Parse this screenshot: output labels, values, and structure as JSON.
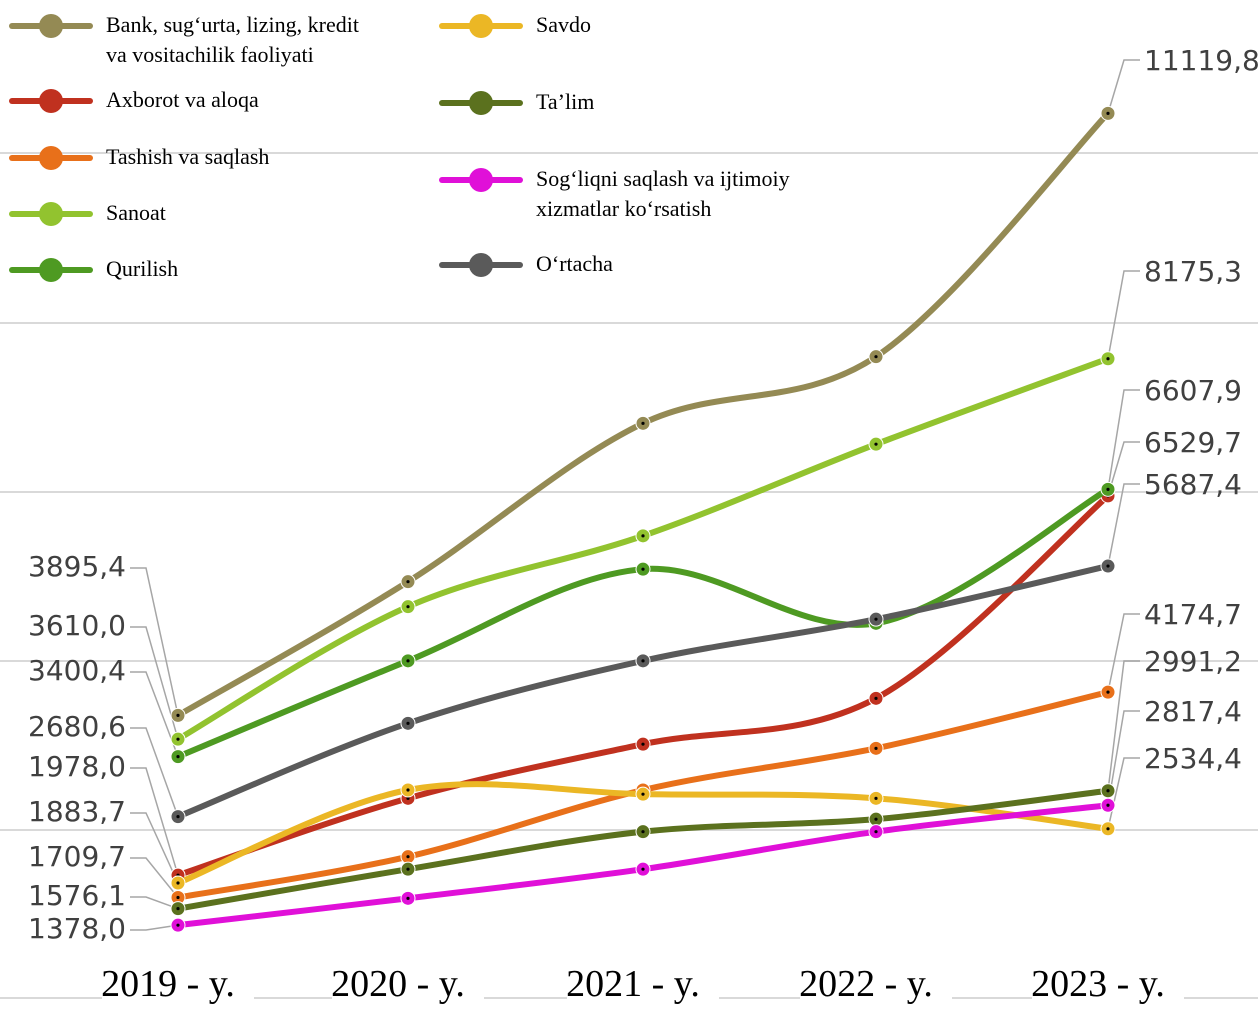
{
  "chart_data": {
    "type": "line",
    "x": [
      "2019 - y.",
      "2020 - y.",
      "2021 - y.",
      "2022 - y.",
      "2023 - y."
    ],
    "ylim": [
      0,
      12000
    ],
    "grid": true,
    "legend_position": "top-left",
    "series": [
      {
        "name": "Bank, sug‘urta, lizing, kredit va vositachilik faoliyati",
        "color": "#948A54",
        "values": [
          3895.4,
          5500,
          7400,
          8200,
          11119.8
        ],
        "start_label": "3895,4",
        "end_label": "11119,8"
      },
      {
        "name": "Axborot va aloqa",
        "color": "#C0311F",
        "values": [
          1978.0,
          2900,
          3550,
          4100,
          6529.7
        ],
        "start_label": "1978,0",
        "end_label": "6529,7"
      },
      {
        "name": "Tashish va saqlash",
        "color": "#E8701A",
        "values": [
          1709.7,
          2200,
          3000,
          3500,
          4174.7
        ],
        "start_label": "1709,7",
        "end_label": "4174,7"
      },
      {
        "name": "Sanoat",
        "color": "#92C32F",
        "values": [
          3610.0,
          5200,
          6050,
          7150,
          8175.3
        ],
        "start_label": "3610,0",
        "end_label": "8175,3"
      },
      {
        "name": "Qurilish",
        "color": "#4E9A22",
        "values": [
          3400.4,
          4550,
          5650,
          5000,
          6607.9
        ],
        "start_label": "3400,4",
        "end_label": "6607,9"
      },
      {
        "name": "Savdo",
        "color": "#EBB725",
        "values": [
          1883.7,
          3000,
          2950,
          2900,
          2534.4
        ],
        "start_label": "1883,7",
        "end_label": "2534,4"
      },
      {
        "name": "Ta’lim",
        "color": "#5B711E",
        "values": [
          1576.1,
          2050,
          2500,
          2650,
          2991.2
        ],
        "start_label": "1576,1",
        "end_label": "2991,2"
      },
      {
        "name": "Sog‘liqni saqlash va ijtimoiy xizmatlar ko‘rsatish",
        "color": "#E010D8",
        "values": [
          1378.0,
          1700,
          2050,
          2500,
          2817.4
        ],
        "start_label": "1378,0",
        "end_label": "2817,4"
      },
      {
        "name": "O‘rtacha",
        "color": "#5A5A5A",
        "values": [
          2680.6,
          3800,
          4550,
          5050,
          5687.4
        ],
        "start_label": "2680,6",
        "end_label": "5687,4"
      }
    ]
  }
}
